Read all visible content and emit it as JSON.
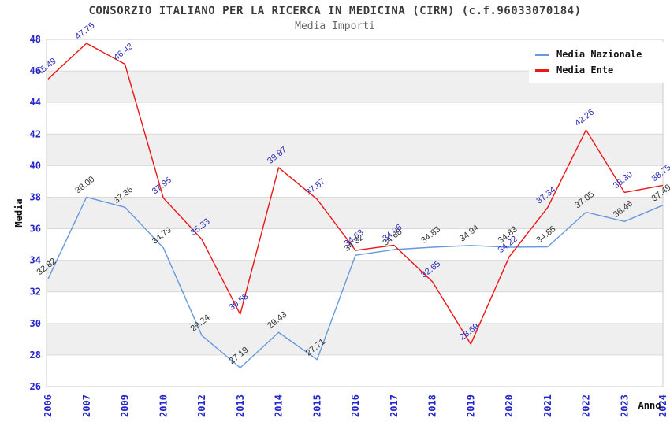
{
  "title": "CONSORZIO ITALIANO PER LA RICERCA IN MEDICINA (CIRM) (c.f.96033070184)",
  "subtitle": "Media Importi",
  "chart_data": {
    "type": "line",
    "title": "CONSORZIO ITALIANO PER LA RICERCA IN MEDICINA (CIRM) (c.f.96033070184)",
    "subtitle": "Media Importi",
    "xlabel": "Anno",
    "ylabel": "Media",
    "x": [
      "2006",
      "2007",
      "2009",
      "2010",
      "2012",
      "2013",
      "2014",
      "2015",
      "2016",
      "2017",
      "2018",
      "2019",
      "2020",
      "2021",
      "2022",
      "2023",
      "2024"
    ],
    "series": [
      {
        "name": "Media Nazionale",
        "color": "#6699DD",
        "label_color": "#333333",
        "values": [
          32.82,
          38.0,
          37.36,
          34.79,
          29.24,
          27.19,
          29.43,
          27.71,
          34.32,
          34.68,
          34.83,
          34.94,
          34.83,
          34.85,
          37.05,
          36.46,
          37.49
        ]
      },
      {
        "name": "Media Ente",
        "color": "#EE1515",
        "label_color": "#2B2BB8",
        "values": [
          45.49,
          47.75,
          46.43,
          37.95,
          35.33,
          30.58,
          39.87,
          37.87,
          34.63,
          34.96,
          32.65,
          28.69,
          34.22,
          37.34,
          42.26,
          38.3,
          38.75
        ]
      }
    ],
    "ylim": [
      26,
      48
    ],
    "ytick_step": 2,
    "grid": "horizontal-bands",
    "band_colors": [
      "#ffffff",
      "#efefef"
    ],
    "gridline_color": "#d9d9d9",
    "border_color": "#cccccc",
    "tick_label_color": "#2525CC",
    "legend_position": "top-right"
  }
}
